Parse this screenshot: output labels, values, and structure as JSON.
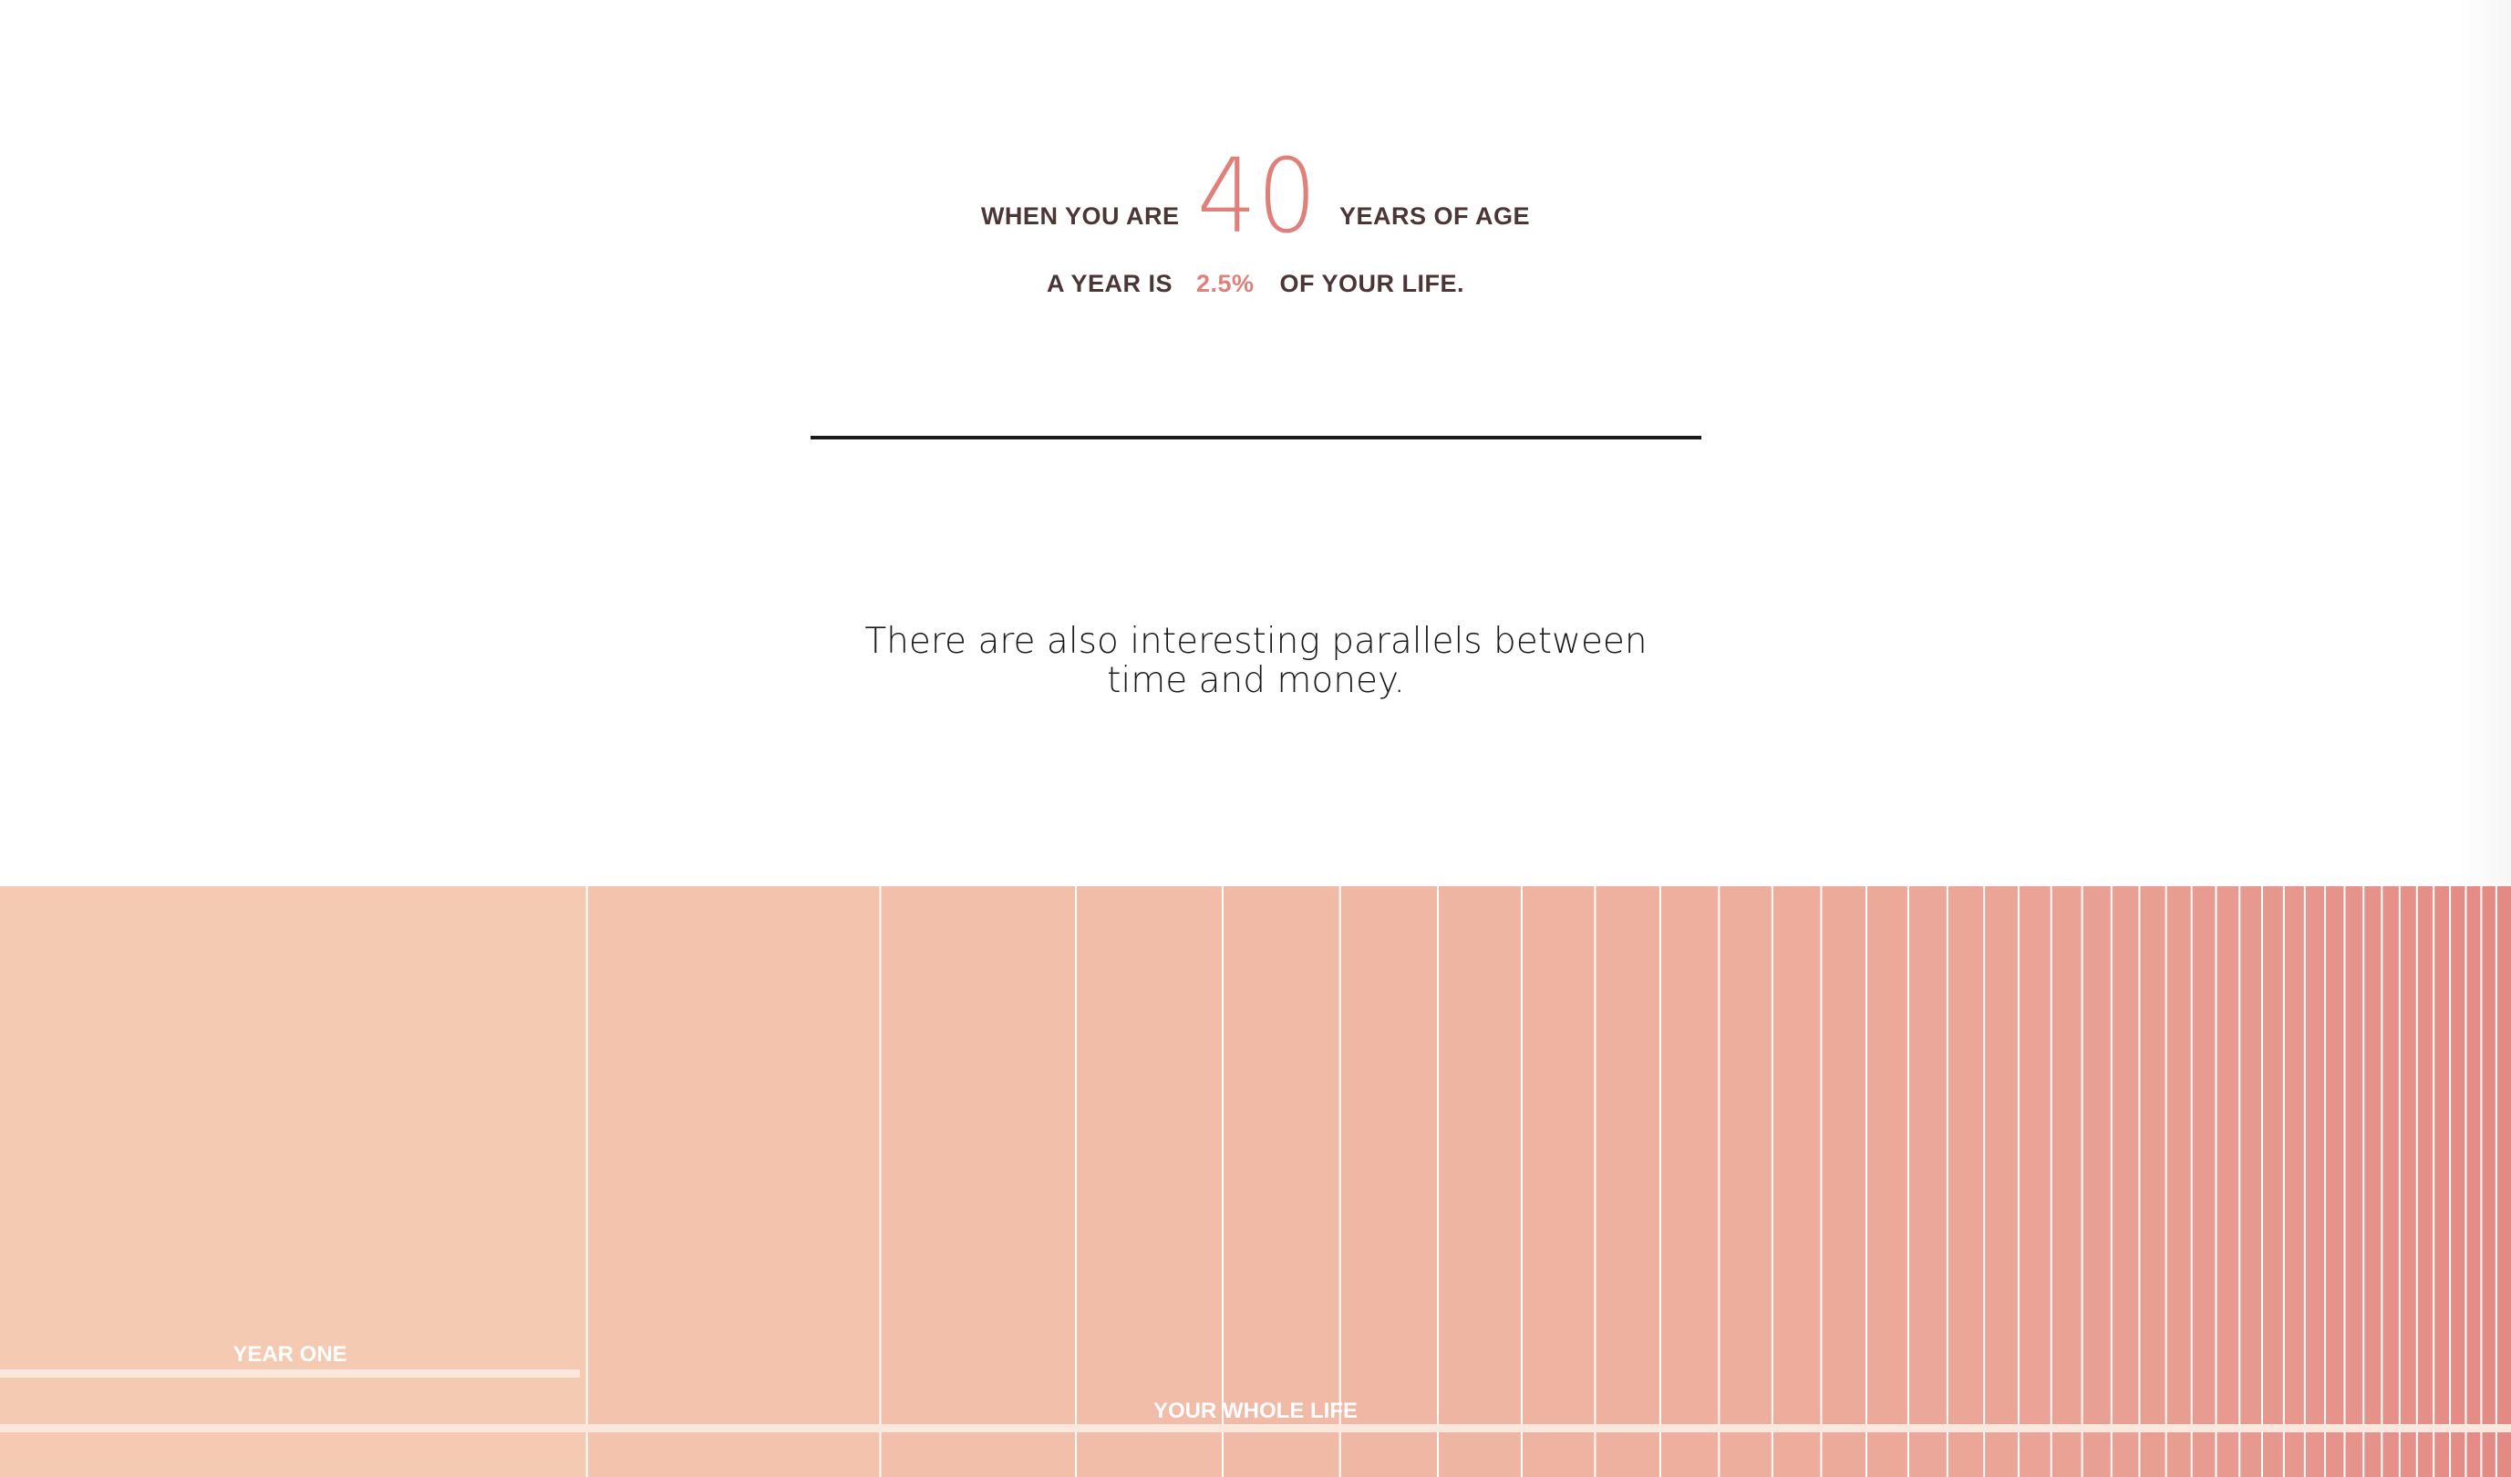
{
  "headline": {
    "line1_prefix": "WHEN YOU ARE",
    "age": "40",
    "line1_suffix": "YEARS OF AGE",
    "line2_prefix": "A YEAR IS",
    "percent": "2.5%",
    "line2_suffix": "OF YOUR LIFE."
  },
  "body": {
    "text": "There are also interesting parallels between time and money."
  },
  "viz": {
    "year_one_label": "YEAR ONE",
    "whole_life_label": "YOUR WHOLE LIFE",
    "age": 40,
    "colors": {
      "start": "#f5cab2",
      "end": "#e38a84",
      "divider": "#ffffff",
      "bar": "#fbe7dc"
    }
  },
  "colors": {
    "accent": "#e0807a",
    "text_dark": "#4b3535",
    "rule": "#1a1a1a"
  }
}
